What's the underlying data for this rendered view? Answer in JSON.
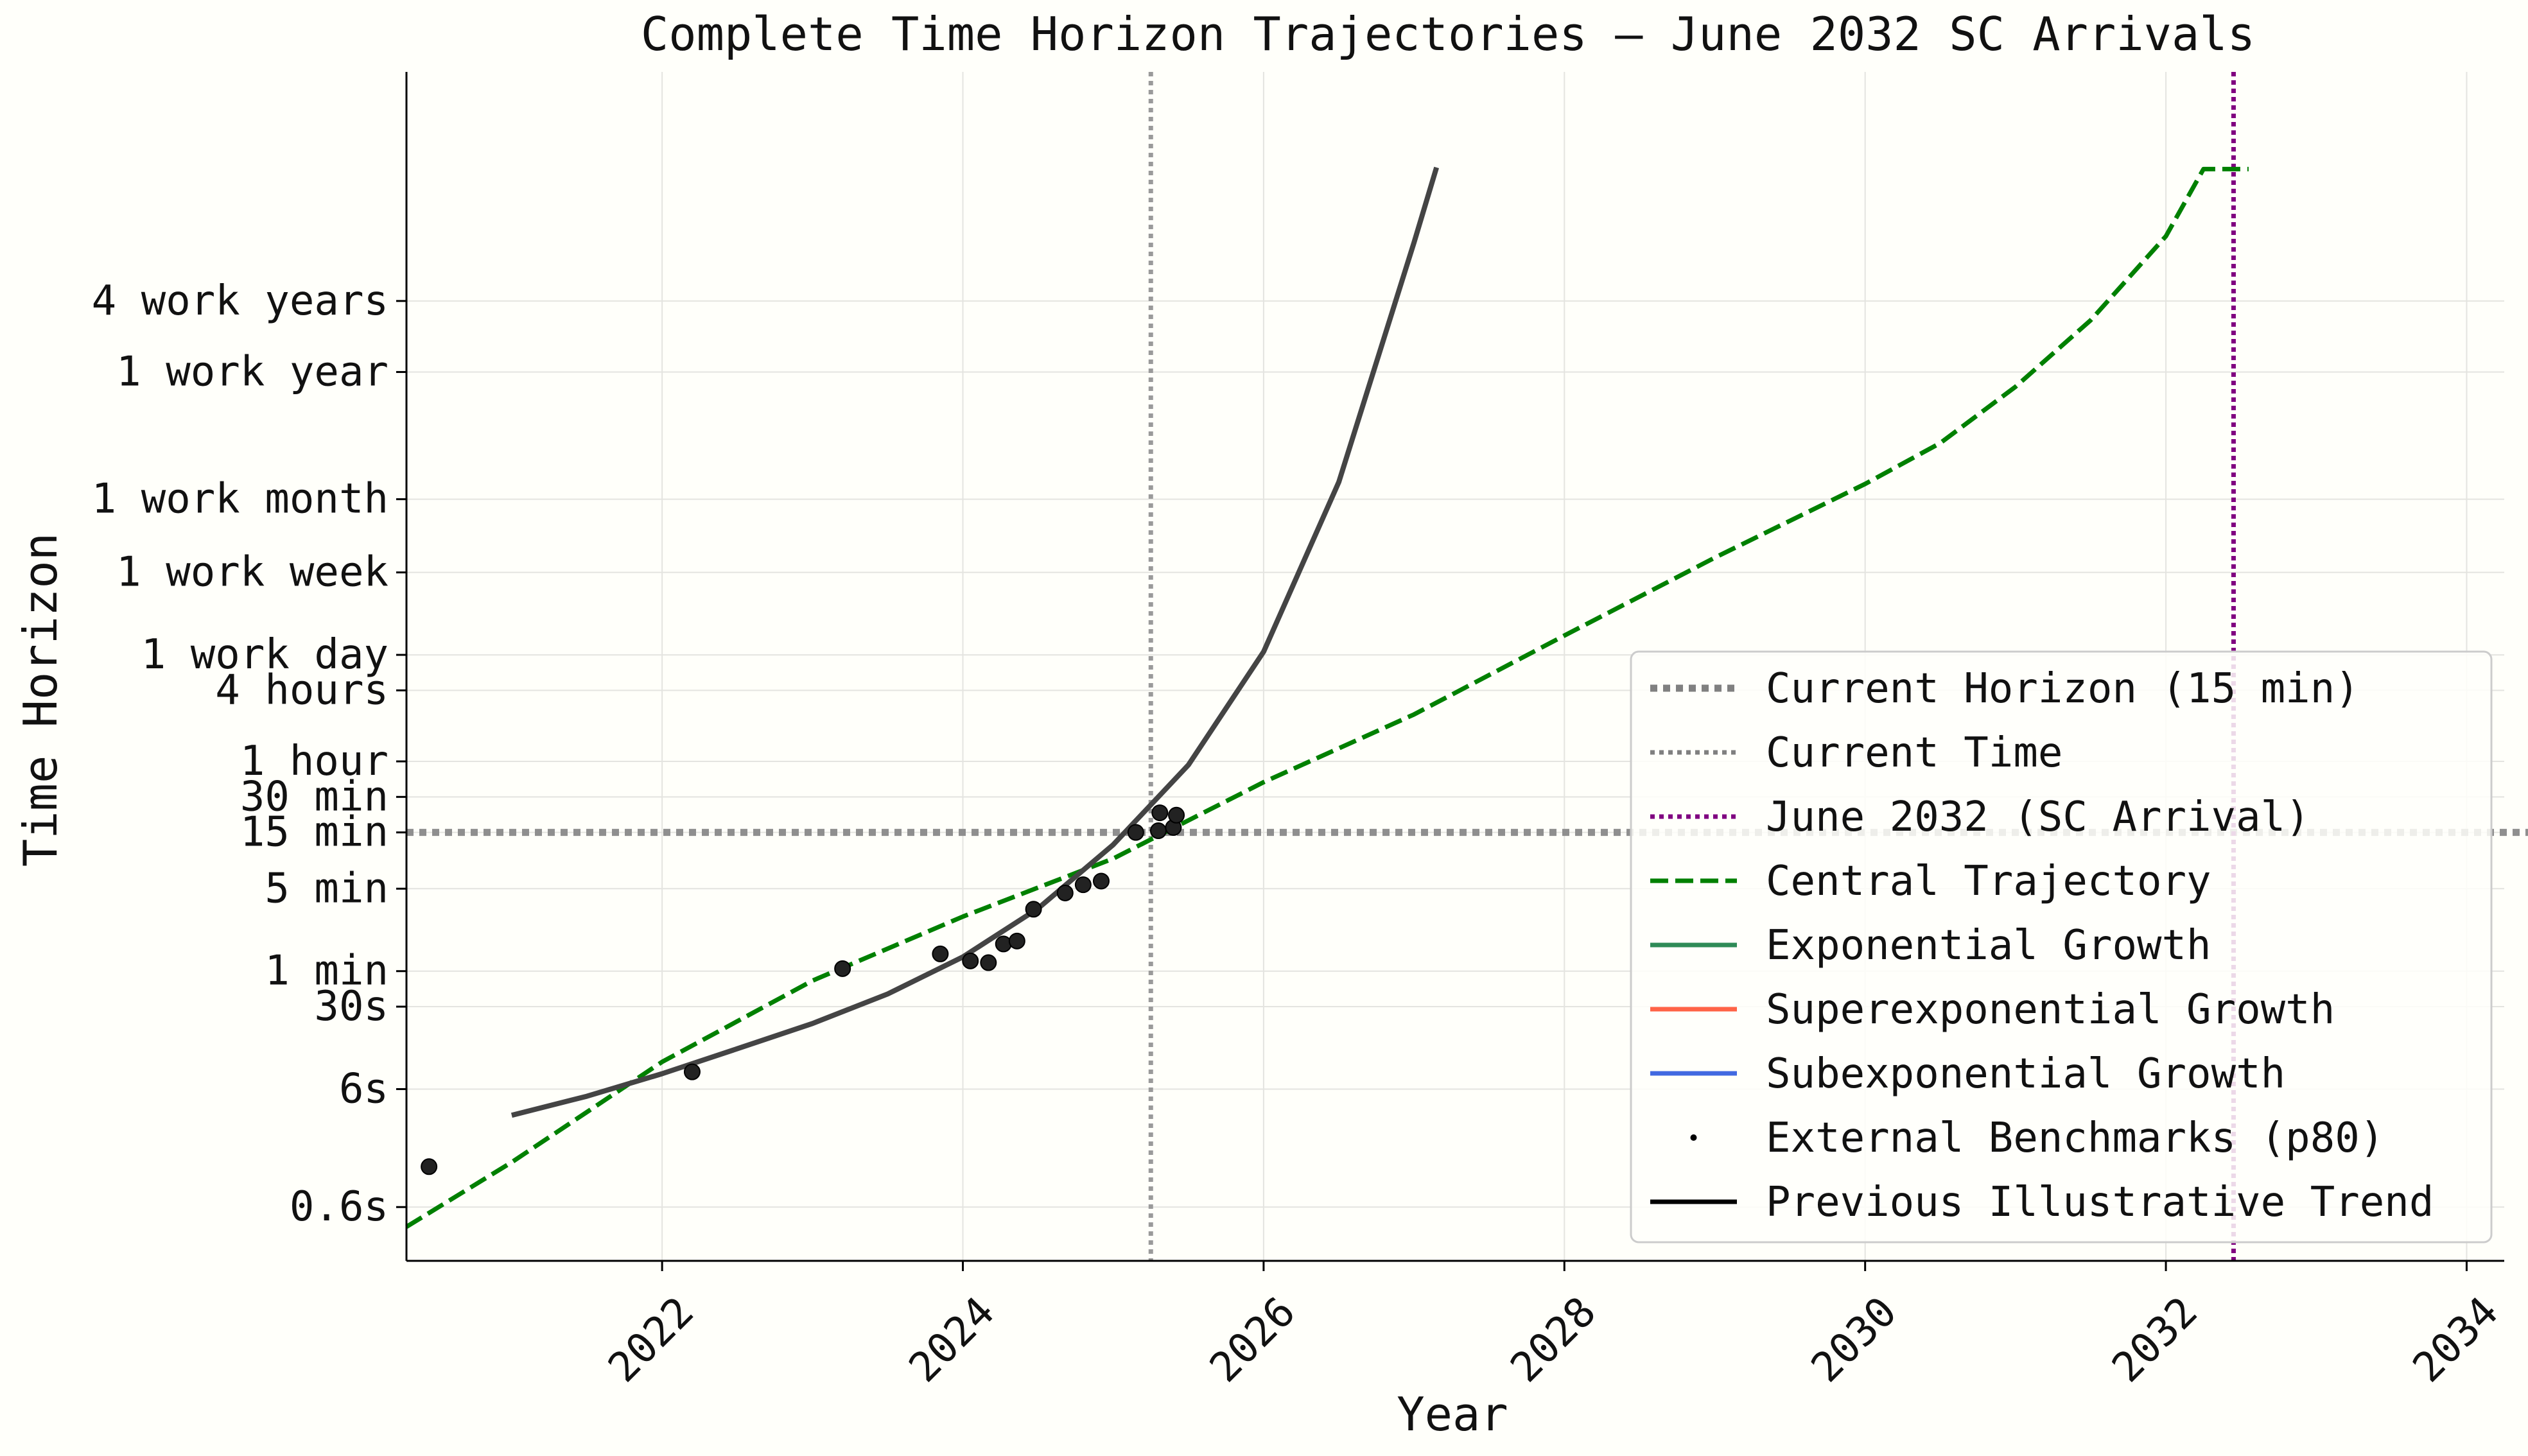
{
  "chart_data": {
    "type": "line",
    "title": "Complete Time Horizon Trajectories – June 2032 SC Arrivals",
    "xlabel": "Year",
    "ylabel": "Time Horizon",
    "xlim": [
      2020.3,
      2034.25
    ],
    "ylim_minutes": [
      0.0035,
      42000000
    ],
    "y_scale": "log",
    "x_ticks": [
      2022,
      2024,
      2026,
      2028,
      2030,
      2032,
      2034
    ],
    "y_ticks": [
      {
        "label": "0.6s",
        "minutes": 0.01
      },
      {
        "label": "6s",
        "minutes": 0.1
      },
      {
        "label": "30s",
        "minutes": 0.5
      },
      {
        "label": "1 min",
        "minutes": 1
      },
      {
        "label": "5 min",
        "minutes": 5
      },
      {
        "label": "15 min",
        "minutes": 15
      },
      {
        "label": "30 min",
        "minutes": 30
      },
      {
        "label": "1 hour",
        "minutes": 60
      },
      {
        "label": "4 hours",
        "minutes": 240
      },
      {
        "label": "1 work day",
        "minutes": 480
      },
      {
        "label": "1 work week",
        "minutes": 2400
      },
      {
        "label": "1 work month",
        "minutes": 10020
      },
      {
        "label": "1 work year",
        "minutes": 120000
      },
      {
        "label": "4 work years",
        "minutes": 480000
      }
    ],
    "grid": true,
    "legend_position": "lower-right",
    "current_horizon_minutes": 15,
    "current_time": 2025.25,
    "sc_arrival": 2032.45,
    "series": [
      {
        "name": "Central Trajectory",
        "style": "dashed",
        "color": "#008000",
        "x": [
          2020.3,
          2021.0,
          2022.0,
          2023.0,
          2024.0,
          2025.0,
          2026.0,
          2027.0,
          2028.0,
          2029.0,
          2030.0,
          2030.5,
          2031.0,
          2031.5,
          2032.0,
          2032.25,
          2032.55
        ],
        "y": [
          0.0068,
          0.024,
          0.17,
          0.83,
          2.9,
          9.0,
          40,
          150,
          700,
          3200,
          13500,
          30000,
          90000,
          330000,
          1700000,
          6300000,
          6300000
        ]
      },
      {
        "name": "Previous Illustrative Trend",
        "style": "solid",
        "color": "#444444",
        "x": [
          2021.0,
          2021.5,
          2022.0,
          2022.5,
          2023.0,
          2023.5,
          2024.0,
          2024.5,
          2025.0,
          2025.5,
          2026.0,
          2026.5,
          2027.0,
          2027.15
        ],
        "y": [
          0.06,
          0.087,
          0.135,
          0.22,
          0.36,
          0.64,
          1.32,
          3.4,
          11.8,
          56,
          510,
          14000,
          1500000,
          6500000
        ]
      }
    ],
    "benchmarks": {
      "name": "External Benchmarks (p80)",
      "x": [
        2020.45,
        2022.2,
        2023.2,
        2023.85,
        2024.05,
        2024.17,
        2024.27,
        2024.36,
        2024.47,
        2024.68,
        2024.8,
        2024.92,
        2025.15,
        2025.3,
        2025.31,
        2025.4,
        2025.42
      ],
      "y": [
        0.022,
        0.14,
        1.05,
        1.4,
        1.22,
        1.18,
        1.7,
        1.8,
        3.35,
        4.6,
        5.4,
        5.8,
        15,
        15.5,
        22,
        16.5,
        21
      ]
    },
    "legend": [
      {
        "label": "Current Horizon (15 min)",
        "style": "dotted-thick",
        "color": "#808080"
      },
      {
        "label": "Current Time",
        "style": "dotted",
        "color": "#808080"
      },
      {
        "label": "June 2032 (SC Arrival)",
        "style": "dotted",
        "color": "#800080"
      },
      {
        "label": "Central Trajectory",
        "style": "dashed",
        "color": "#008000"
      },
      {
        "label": "Exponential Growth",
        "style": "solid",
        "color": "#2e8b57"
      },
      {
        "label": "Superexponential Growth",
        "style": "solid",
        "color": "#ff6347"
      },
      {
        "label": "Subexponential Growth",
        "style": "solid",
        "color": "#4169e1"
      },
      {
        "label": "External Benchmarks (p80)",
        "style": "point",
        "color": "#000000"
      },
      {
        "label": "Previous Illustrative Trend",
        "style": "solid",
        "color": "#000000"
      }
    ]
  }
}
